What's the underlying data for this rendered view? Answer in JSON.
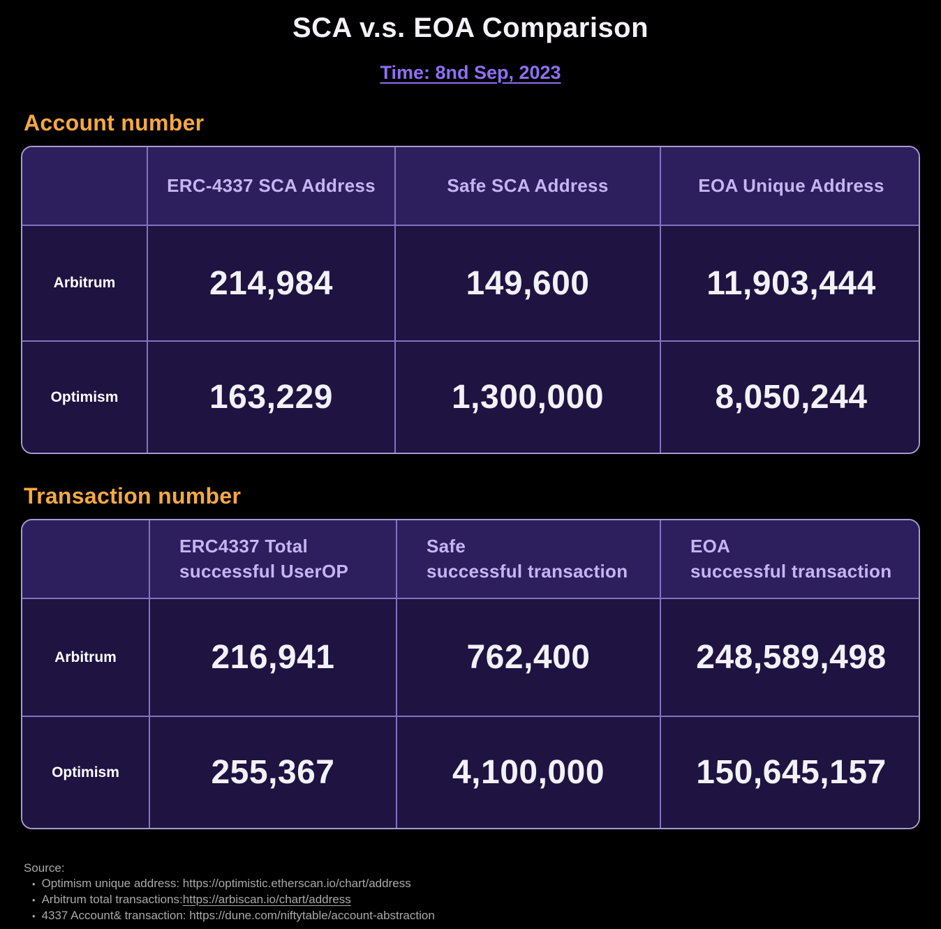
{
  "title": "SCA v.s. EOA Comparison",
  "time_label": "Time: 8nd Sep, 2023",
  "colors": {
    "background": "#000000",
    "heading_orange": "#f5a843",
    "link_purple": "#8f6ff2",
    "header_bg": "#2d1f5e",
    "body_bg": "#1e1341",
    "outer_border": "#a79ace",
    "inner_border": "#8273c0",
    "header_text": "#c6b5f0",
    "value_text": "#f2f1f6",
    "footer_text": "#a9a9a9"
  },
  "sections": [
    {
      "heading": "Account number",
      "columns": [
        "ERC-4337 SCA Address",
        "Safe SCA Address",
        "EOA Unique Address"
      ],
      "rows": [
        {
          "label": "Arbitrum",
          "values": [
            "214,984",
            "149,600",
            "11,903,444"
          ]
        },
        {
          "label": "Optimism",
          "values": [
            "163,229",
            "1,300,000",
            "8,050,244"
          ]
        }
      ]
    },
    {
      "heading": "Transaction number",
      "columns": [
        "ERC4337 Total\nsuccessful UserOP",
        "Safe\nsuccessful transaction",
        "EOA\nsuccessful transaction"
      ],
      "rows": [
        {
          "label": "Arbitrum",
          "values": [
            "216,941",
            "762,400",
            "248,589,498"
          ]
        },
        {
          "label": "Optimism",
          "values": [
            "255,367",
            "4,100,000",
            "150,645,157"
          ]
        }
      ]
    }
  ],
  "footer": {
    "source_label": "Source:",
    "bullet": "•",
    "items": [
      {
        "prefix": "Optimism unique address: https://optimistic.etherscan.io/chart/address",
        "link": ""
      },
      {
        "prefix": "Arbitrum total transactions: ",
        "link": "https://arbiscan.io/chart/address"
      },
      {
        "prefix": "4337 Account& transaction: https://dune.com/niftytable/account-abstraction",
        "link": ""
      }
    ]
  },
  "chart_data": [
    {
      "type": "table",
      "title": "Account number",
      "columns": [
        "",
        "ERC-4337 SCA Address",
        "Safe SCA Address",
        "EOA Unique Address"
      ],
      "rows": [
        [
          "Arbitrum",
          214984,
          149600,
          11903444
        ],
        [
          "Optimism",
          163229,
          1300000,
          8050244
        ]
      ]
    },
    {
      "type": "table",
      "title": "Transaction number",
      "columns": [
        "",
        "ERC4337 Total successful UserOP",
        "Safe successful transaction",
        "EOA successful transaction"
      ],
      "rows": [
        [
          "Arbitrum",
          216941,
          762400,
          248589498
        ],
        [
          "Optimism",
          255367,
          4100000,
          150645157
        ]
      ]
    }
  ]
}
